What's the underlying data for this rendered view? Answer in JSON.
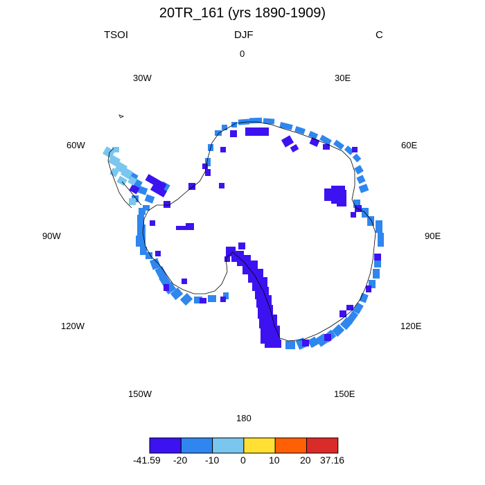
{
  "title": "20TR_161 (yrs 1890-1909)",
  "header": {
    "left": "TSOI",
    "center": "DJF",
    "right": "C"
  },
  "longitude_labels": {
    "n0": "0",
    "n30e": "30E",
    "n60e": "60E",
    "n90e": "90E",
    "n120e": "120E",
    "n150e": "150E",
    "n180": "180",
    "n150w": "150W",
    "n120w": "120W",
    "n90w": "90W",
    "n60w": "60W",
    "n30w": "30W"
  },
  "colorbar": {
    "colors": [
      "#3d12f0",
      "#2f86ef",
      "#7ac6ef",
      "#ffe033",
      "#ff6006",
      "#db2a2a"
    ],
    "labels": [
      "-41.59",
      "-20",
      "-10",
      "0",
      "10",
      "20",
      "37.16"
    ]
  },
  "legend_colors": {
    "dark_blue": "#3d12f0",
    "mid_blue": "#2f86ef",
    "light_blue": "#7ac6ef"
  }
}
